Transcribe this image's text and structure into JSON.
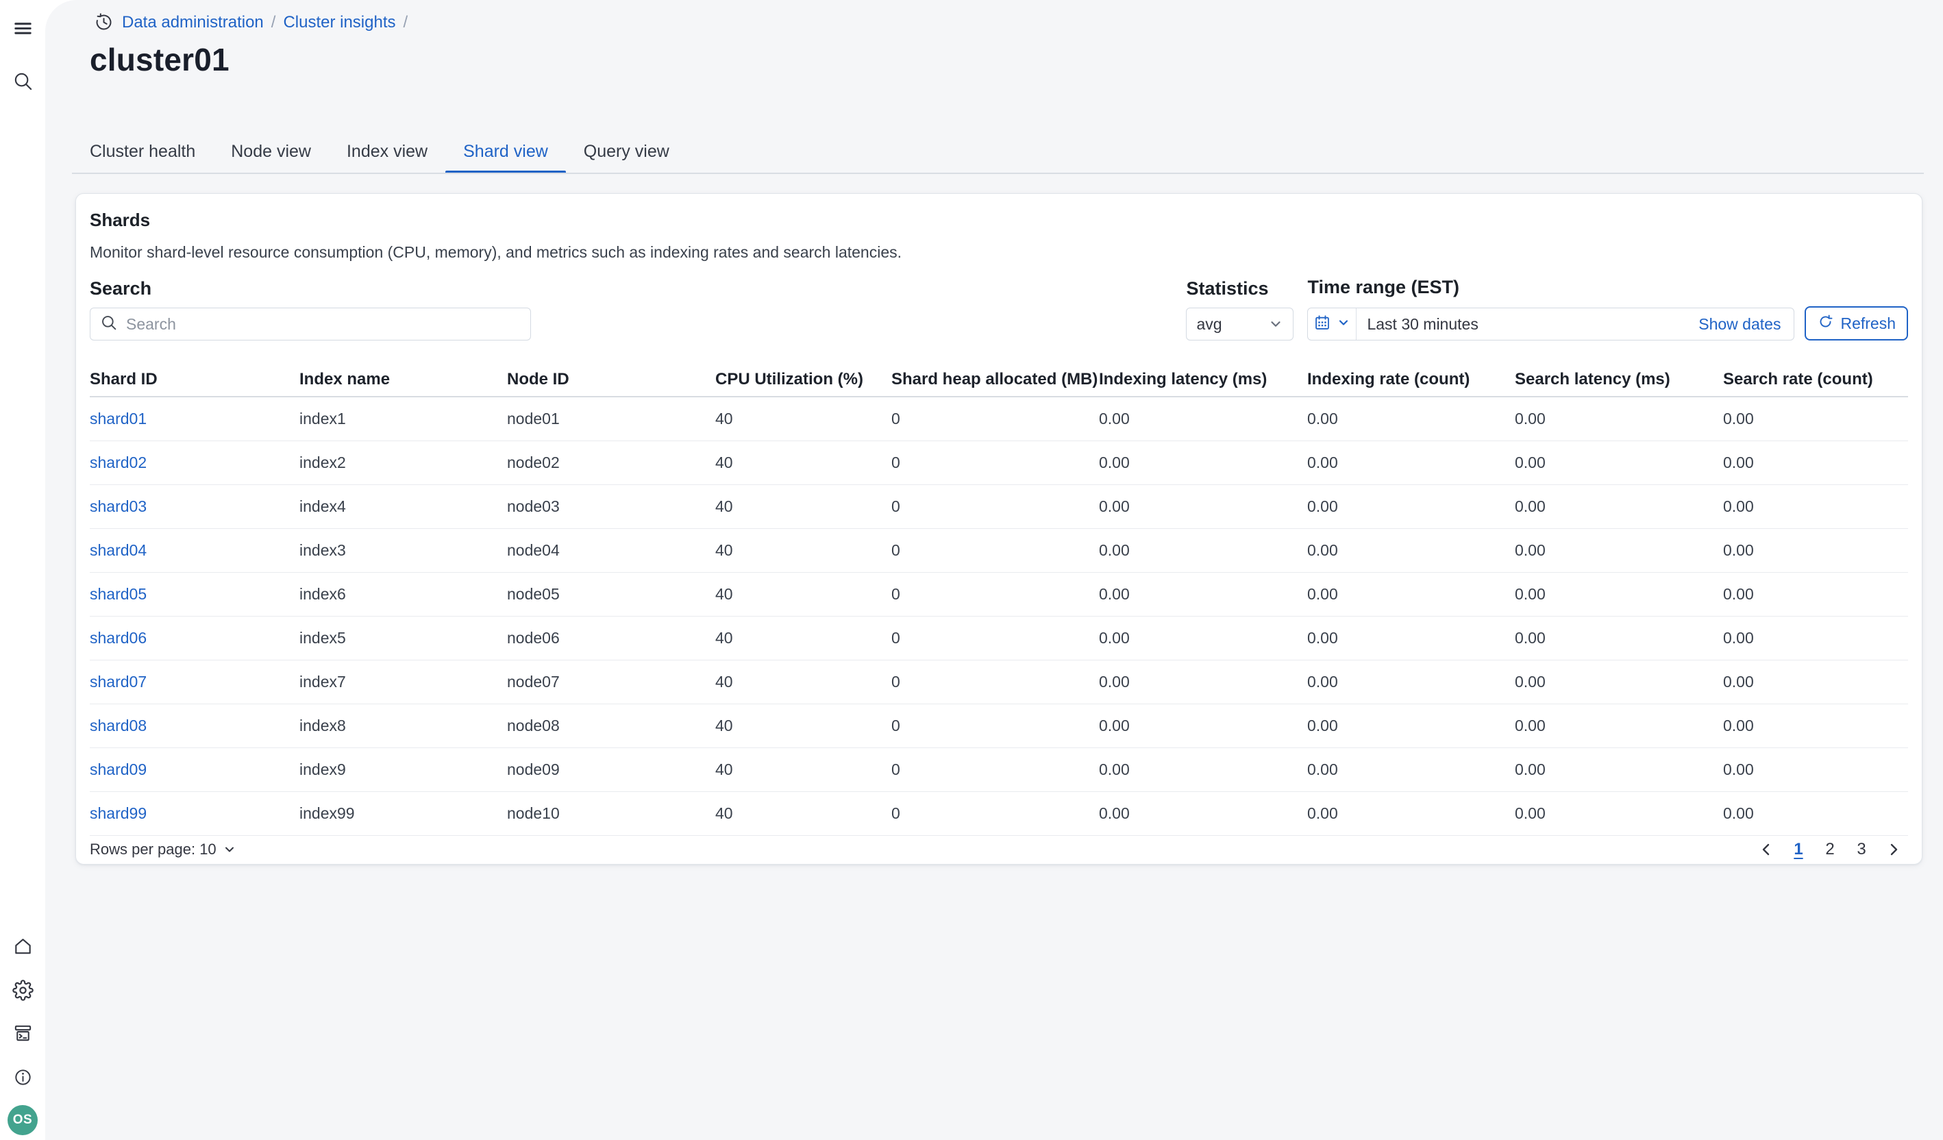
{
  "colors": {
    "primary": "#2063C6",
    "avatar_bg": "#43A38E",
    "page_bg": "#F5F6F8"
  },
  "sidebar": {
    "top_icons": [
      {
        "name": "menu"
      },
      {
        "name": "search"
      }
    ],
    "bottom_icons": [
      {
        "name": "home"
      },
      {
        "name": "settings"
      },
      {
        "name": "dev-tools"
      },
      {
        "name": "info"
      }
    ],
    "avatar_initials": "OS"
  },
  "breadcrumb": {
    "items": [
      "Data administration",
      "Cluster insights"
    ],
    "separator": "/"
  },
  "page": {
    "title": "cluster01"
  },
  "tabs": [
    {
      "label": "Cluster health",
      "active": false
    },
    {
      "label": "Node view",
      "active": false
    },
    {
      "label": "Index view",
      "active": false
    },
    {
      "label": "Shard view",
      "active": true
    },
    {
      "label": "Query view",
      "active": false
    }
  ],
  "panel": {
    "title": "Shards",
    "description": "Monitor shard-level resource consumption (CPU, memory), and metrics such as indexing rates and search latencies.",
    "search": {
      "label": "Search",
      "placeholder": "Search"
    },
    "statistics": {
      "label": "Statistics",
      "value": "avg"
    },
    "time_range": {
      "label": "Time range (EST)",
      "value": "Last 30 minutes",
      "show_dates": "Show dates",
      "refresh": "Refresh"
    },
    "table": {
      "columns": [
        "Shard ID",
        "Index name",
        "Node ID",
        "CPU Utilization (%)",
        "Shard heap allocated (MB)",
        "Indexing latency (ms)",
        "Indexing rate (count)",
        "Search latency (ms)",
        "Search rate (count)"
      ],
      "rows": [
        [
          "shard01",
          "index1",
          "node01",
          "40",
          "0",
          "0.00",
          "0.00",
          "0.00",
          "0.00"
        ],
        [
          "shard02",
          "index2",
          "node02",
          "40",
          "0",
          "0.00",
          "0.00",
          "0.00",
          "0.00"
        ],
        [
          "shard03",
          "index4",
          "node03",
          "40",
          "0",
          "0.00",
          "0.00",
          "0.00",
          "0.00"
        ],
        [
          "shard04",
          "index3",
          "node04",
          "40",
          "0",
          "0.00",
          "0.00",
          "0.00",
          "0.00"
        ],
        [
          "shard05",
          "index6",
          "node05",
          "40",
          "0",
          "0.00",
          "0.00",
          "0.00",
          "0.00"
        ],
        [
          "shard06",
          "index5",
          "node06",
          "40",
          "0",
          "0.00",
          "0.00",
          "0.00",
          "0.00"
        ],
        [
          "shard07",
          "index7",
          "node07",
          "40",
          "0",
          "0.00",
          "0.00",
          "0.00",
          "0.00"
        ],
        [
          "shard08",
          "index8",
          "node08",
          "40",
          "0",
          "0.00",
          "0.00",
          "0.00",
          "0.00"
        ],
        [
          "shard09",
          "index9",
          "node09",
          "40",
          "0",
          "0.00",
          "0.00",
          "0.00",
          "0.00"
        ],
        [
          "shard99",
          "index99",
          "node10",
          "40",
          "0",
          "0.00",
          "0.00",
          "0.00",
          "0.00"
        ]
      ]
    },
    "footer": {
      "rows_per_page": "Rows per page: 10",
      "pages": [
        "1",
        "2",
        "3"
      ],
      "active_page": "1"
    }
  }
}
